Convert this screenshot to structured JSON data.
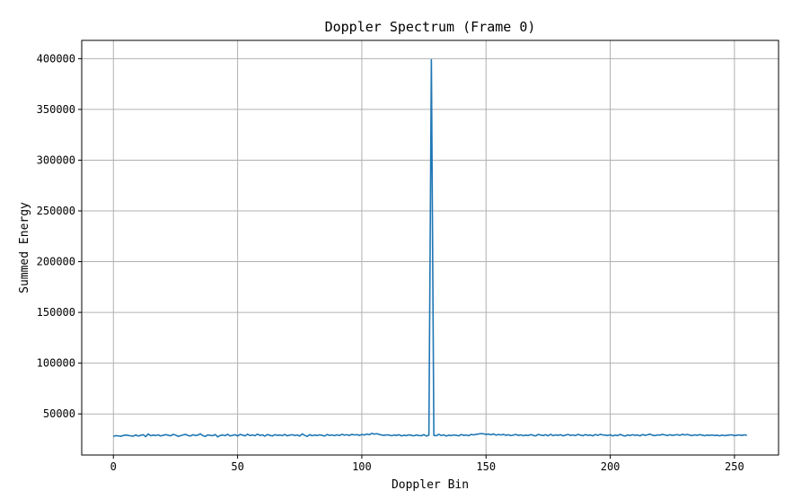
{
  "chart_data": {
    "type": "line",
    "title": "Doppler Spectrum (Frame 0)",
    "xlabel": "Doppler Bin",
    "ylabel": "Summed Energy",
    "xlim": [
      -12.75,
      267.75
    ],
    "ylim": [
      9500,
      418000
    ],
    "xticks": [
      0,
      50,
      100,
      150,
      200,
      250
    ],
    "yticks": [
      50000,
      100000,
      150000,
      200000,
      250000,
      300000,
      350000,
      400000
    ],
    "grid": true,
    "series": [
      {
        "color": "#1f77b4",
        "x_start": 0,
        "values": [
          27900,
          28600,
          28300,
          28000,
          28700,
          29200,
          28800,
          28400,
          28100,
          29300,
          28200,
          28900,
          29500,
          27600,
          30200,
          28500,
          29100,
          28700,
          29400,
          28300,
          28900,
          29600,
          29000,
          28400,
          29800,
          29200,
          27900,
          28500,
          29300,
          29800,
          28800,
          28200,
          29500,
          28700,
          29100,
          30400,
          28600,
          27800,
          29300,
          28900,
          28500,
          29700,
          27400,
          28800,
          29200,
          28600,
          29900,
          28300,
          28900,
          29500,
          28200,
          29800,
          29100,
          28400,
          30000,
          28700,
          29300,
          28500,
          30100,
          28800,
          29400,
          28100,
          29700,
          28900,
          28300,
          29600,
          28800,
          29200,
          28600,
          29800,
          28400,
          29100,
          29500,
          28700,
          29300,
          28200,
          30300,
          28900,
          27800,
          29600,
          28500,
          29200,
          28700,
          29400,
          28900,
          28200,
          29700,
          28800,
          29300,
          28600,
          29400,
          28700,
          29900,
          29100,
          29500,
          28800,
          29800,
          29300,
          29600,
          28900,
          29700,
          29200,
          30200,
          29500,
          30800,
          30100,
          30500,
          29800,
          29200,
          28900,
          29400,
          29100,
          28500,
          29200,
          28800,
          29500,
          28300,
          29000,
          28600,
          29400,
          28900,
          28400,
          29300,
          28700,
          28500,
          29600,
          28200,
          29100,
          399000,
          28800,
          28500,
          29900,
          28700,
          29400,
          28200,
          29100,
          28600,
          29300,
          28900,
          28400,
          29700,
          28800,
          29200,
          28500,
          29800,
          29300,
          29900,
          30200,
          30600,
          30400,
          29800,
          30100,
          29400,
          30300,
          29100,
          29700,
          29300,
          29800,
          28900,
          29500,
          28600,
          29200,
          29700,
          28800,
          29400,
          28500,
          29100,
          28700,
          29600,
          28900,
          28300,
          29800,
          29200,
          28700,
          29500,
          28400,
          29900,
          28600,
          29300,
          28900,
          29500,
          28400,
          29100,
          29700,
          28800,
          29300,
          28600,
          29800,
          29100,
          28500,
          29600,
          28900,
          29200,
          28400,
          29700,
          28800,
          29900,
          29300,
          29100,
          28700,
          29500,
          28300,
          29200,
          28600,
          29800,
          28800,
          28200,
          29300,
          28700,
          29500,
          28900,
          29200,
          28400,
          29700,
          28900,
          29400,
          30100,
          29000,
          28600,
          29300,
          29100,
          29800,
          29300,
          28700,
          29500,
          28900,
          29200,
          29600,
          28800,
          29900,
          29300,
          29700,
          29100,
          28600,
          29400,
          28900,
          29600,
          29100,
          28500,
          29200,
          28800,
          29300,
          28700,
          29000,
          28400,
          29100,
          28600,
          28900,
          29200,
          29400,
          28600,
          29000,
          29300,
          28800,
          29400,
          28900
        ]
      }
    ]
  }
}
